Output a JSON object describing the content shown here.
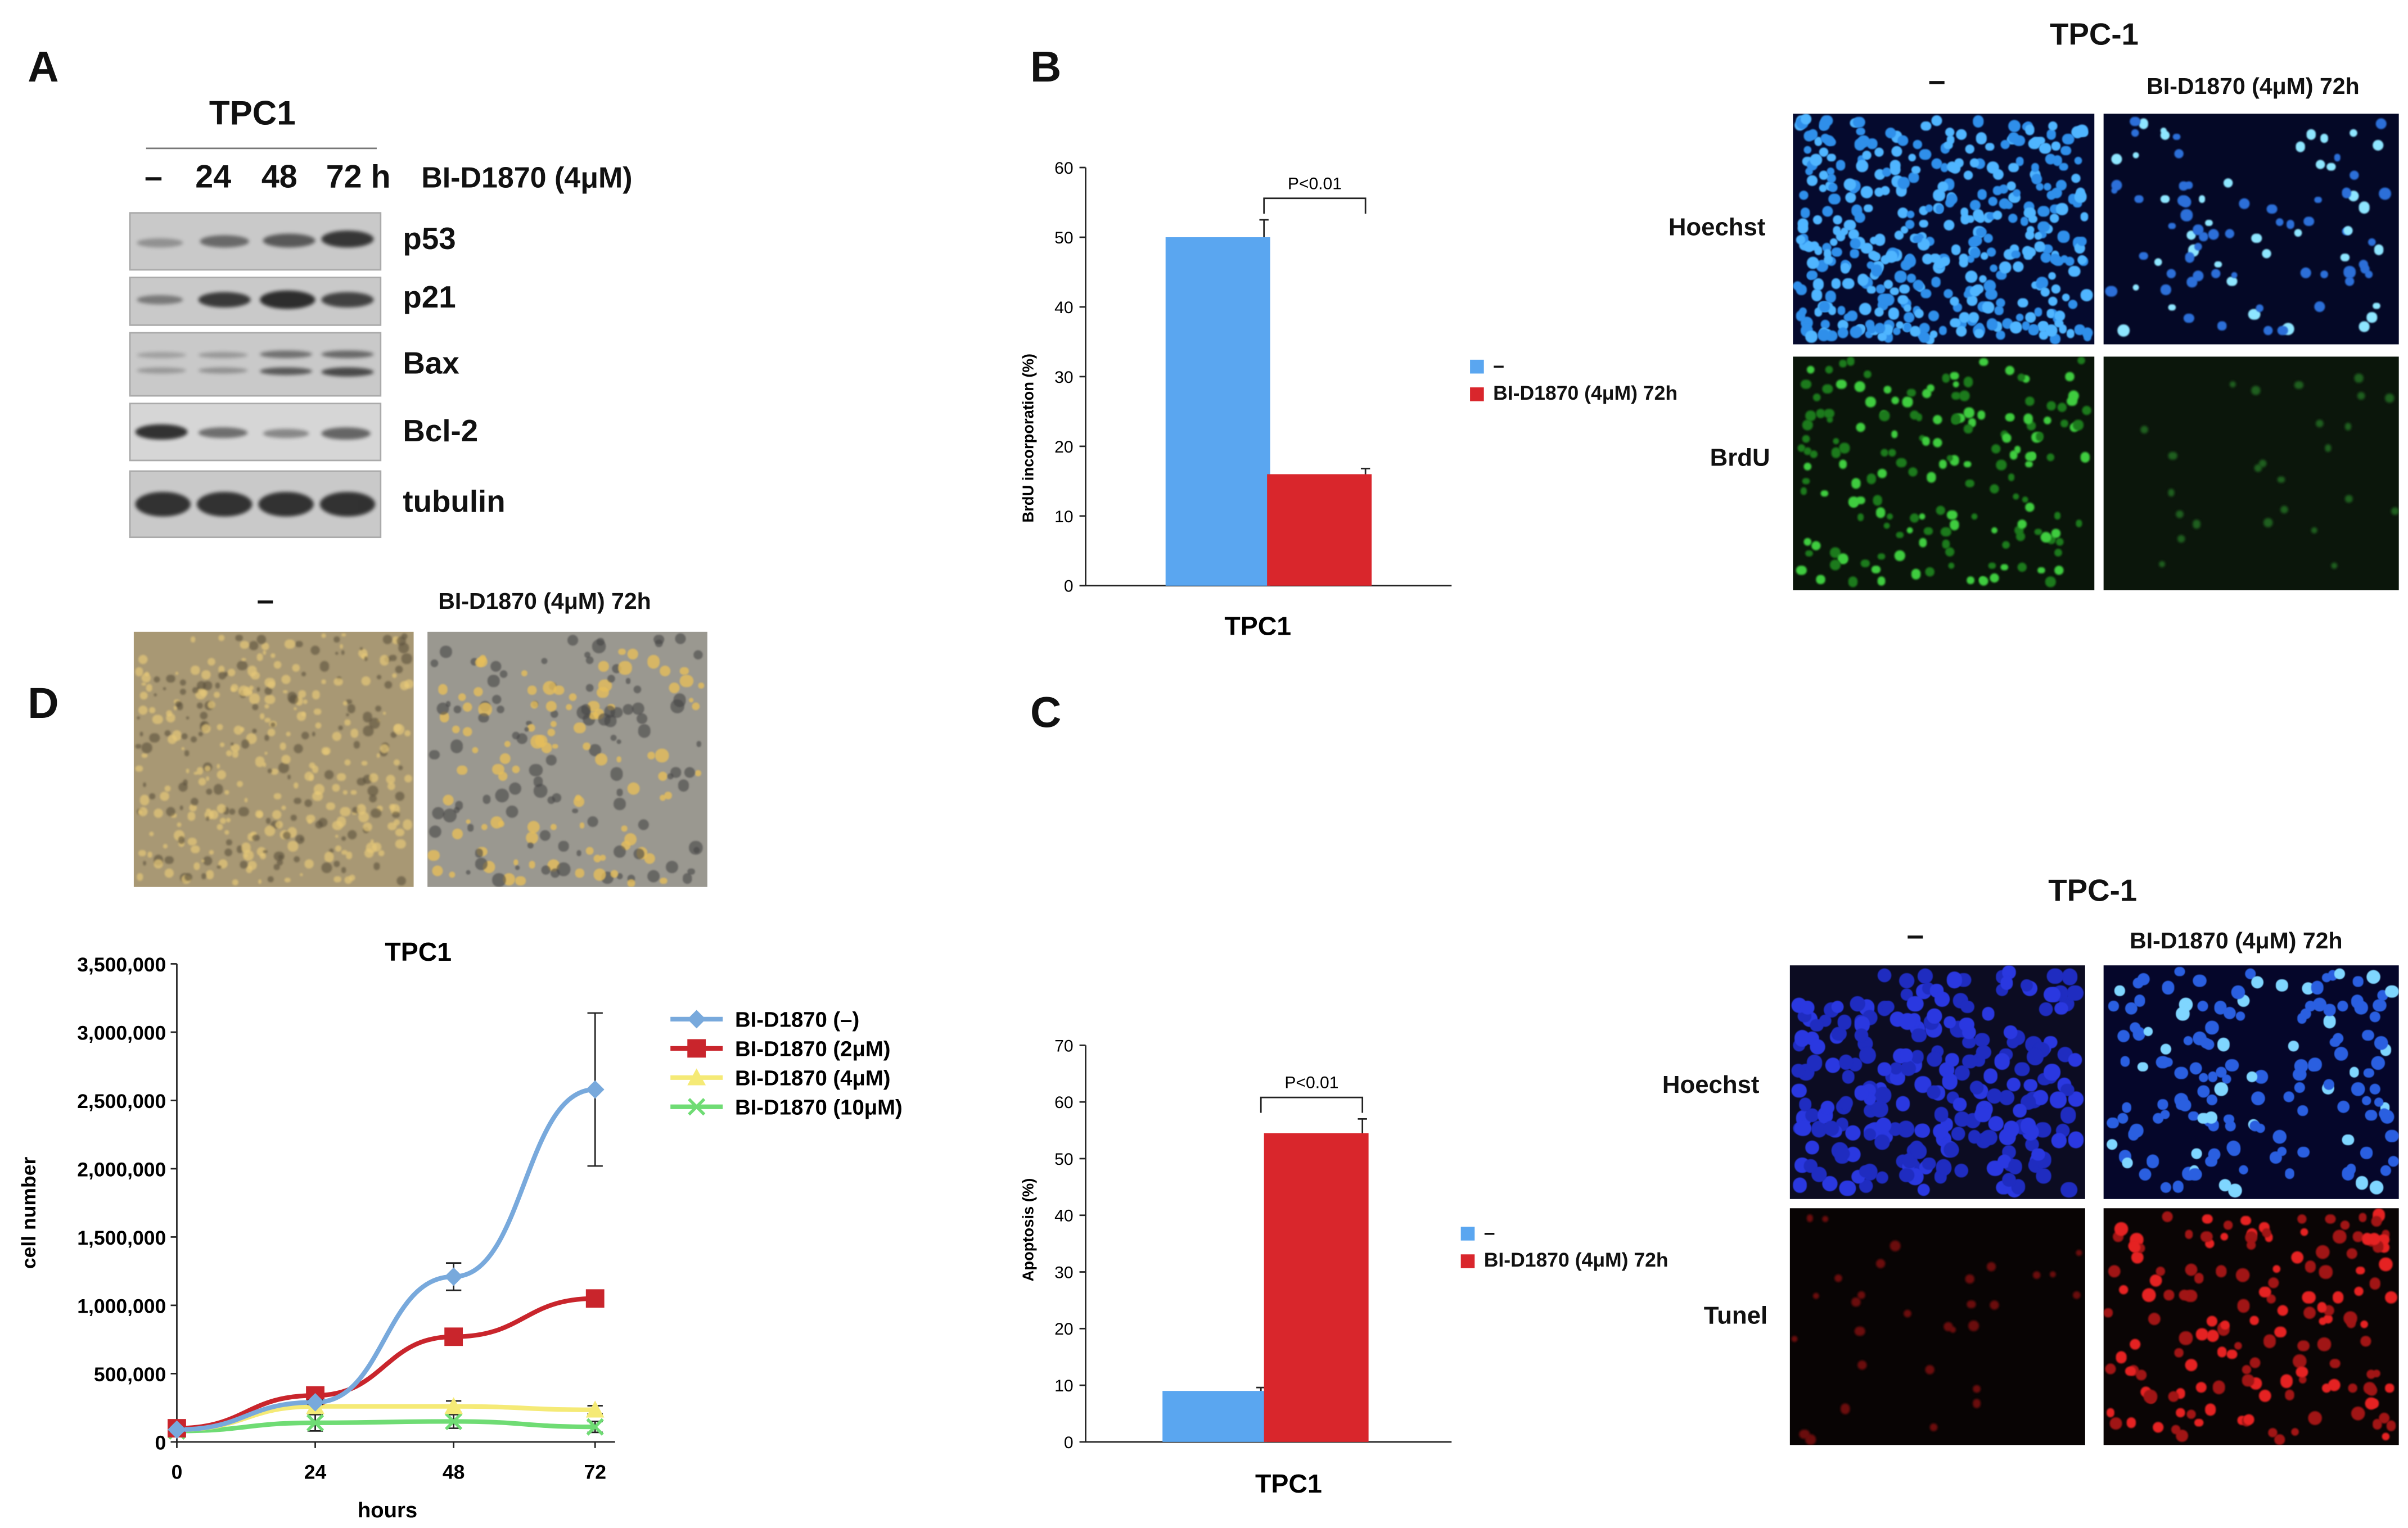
{
  "panels": {
    "A": "A",
    "B": "B",
    "C": "C",
    "D": "D"
  },
  "panel_a": {
    "cell_line": "TPC1",
    "lanes": [
      "–",
      "24",
      "48",
      "72 h"
    ],
    "treatment": "BI-D1870 (4μM)",
    "proteins": [
      "p53",
      "p21",
      "Bax",
      "Bcl-2",
      "tubulin"
    ]
  },
  "panel_b": {
    "images_title": "TPC-1",
    "col_labels": [
      "–",
      "BI-D1870 (4μM) 72h"
    ],
    "row_labels": [
      "Hoechst",
      "BrdU"
    ],
    "legend": [
      "–",
      "BI-D1870 (4μM) 72h"
    ],
    "pvalue": "P<0.01",
    "xlabel": "TPC1",
    "ylabel": "BrdU incorporation (%)"
  },
  "panel_c": {
    "images_title": "TPC-1",
    "col_labels": [
      "–",
      "BI-D1870 (4μM) 72h"
    ],
    "row_labels": [
      "Hoechst",
      "Tunel"
    ],
    "legend": [
      "–",
      "BI-D1870 (4μM) 72h"
    ],
    "pvalue": "P<0.01",
    "xlabel": "TPC1",
    "ylabel": "Apoptosis (%)"
  },
  "panel_d": {
    "col_labels": [
      "–",
      "BI-D1870 (4μM) 72h"
    ],
    "chart_title": "TPC1",
    "xlabel": "hours",
    "ylabel": "cell number"
  },
  "colors": {
    "blue": "#5aa6f0",
    "red": "#d9262c",
    "yellow": "#f5ea76",
    "green": "#6fdc74",
    "line_blue": "#78a9dc",
    "line_red": "#c9252c"
  },
  "chart_data": [
    {
      "type": "bar",
      "categories": [
        "–",
        "BI-D1870 (4μM) 72h"
      ],
      "values": [
        50,
        16
      ],
      "errors": [
        2.5,
        0.8
      ],
      "ylim": [
        0,
        60
      ],
      "yticks": [
        0,
        10,
        20,
        30,
        40,
        50,
        60
      ],
      "xlabel": "TPC1",
      "ylabel": "BrdU incorporation (%)",
      "annotation": "P<0.01"
    },
    {
      "type": "bar",
      "categories": [
        "–",
        "BI-D1870 (4μM) 72h"
      ],
      "values": [
        9,
        54.5
      ],
      "errors": [
        0.6,
        2.5
      ],
      "ylim": [
        0,
        70
      ],
      "yticks": [
        0,
        10,
        20,
        30,
        40,
        50,
        60,
        70
      ],
      "xlabel": "TPC1",
      "ylabel": "Apoptosis (%)",
      "annotation": "P<0.01"
    },
    {
      "type": "line",
      "title": "TPC1",
      "x": [
        0,
        24,
        48,
        72
      ],
      "xlabel": "hours",
      "ylabel": "cell number",
      "ylim": [
        0,
        3500000
      ],
      "yticks": [
        0,
        500000,
        1000000,
        1500000,
        2000000,
        2500000,
        3000000,
        3500000
      ],
      "ytick_labels": [
        "0",
        "500,000",
        "1,000,000",
        "1,500,000",
        "2,000,000",
        "2,500,000",
        "3,000,000",
        "3,500,000"
      ],
      "legend_position": "right",
      "series": [
        {
          "name": "BI-D1870 (–)",
          "values": [
            90000,
            290000,
            1210000,
            2580000
          ],
          "errors": [
            10000,
            15000,
            100000,
            560000
          ],
          "marker": "diamond",
          "color": "#78a9dc"
        },
        {
          "name": "BI-D1870 (2μM)",
          "values": [
            100000,
            340000,
            770000,
            1050000
          ],
          "errors": [
            10000,
            20000,
            30000,
            50000
          ],
          "marker": "square",
          "color": "#c9252c"
        },
        {
          "name": "BI-D1870 (4μM)",
          "values": [
            90000,
            260000,
            260000,
            235000
          ],
          "errors": [
            10000,
            40000,
            40000,
            30000
          ],
          "marker": "triangle",
          "color": "#f5ea76"
        },
        {
          "name": "BI-D1870 (10μM)",
          "values": [
            80000,
            140000,
            150000,
            110000
          ],
          "errors": [
            10000,
            60000,
            50000,
            40000
          ],
          "marker": "x",
          "color": "#6fdc74"
        }
      ]
    }
  ]
}
